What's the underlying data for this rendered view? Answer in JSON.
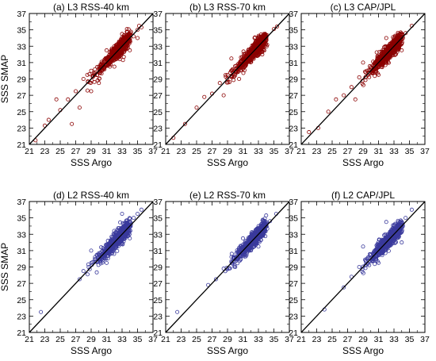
{
  "chart_data": [
    {
      "type": "scatter",
      "title": "(a) L3 RSS-40 km",
      "xlabel": "SSS Argo",
      "ylabel": "SSS SMAP",
      "xlim": [
        21,
        37
      ],
      "ylim": [
        21,
        37
      ],
      "color": "#8B0000",
      "reference_line": "y=x",
      "tick_labels": [
        "21",
        "23",
        "25",
        "27",
        "29",
        "31",
        "33",
        "35",
        "37"
      ],
      "points": [
        [
          21.8,
          21.5
        ],
        [
          23,
          23.3
        ],
        [
          23.5,
          24
        ],
        [
          25,
          25.2
        ],
        [
          26,
          26.5
        ],
        [
          27,
          27.5
        ],
        [
          28,
          29
        ],
        [
          28.5,
          29.5
        ],
        [
          29,
          30
        ],
        [
          29.5,
          29.8
        ],
        [
          30,
          30.5
        ],
        [
          30.5,
          31
        ],
        [
          31,
          31.5
        ],
        [
          31.5,
          31
        ],
        [
          32,
          32.5
        ],
        [
          32.5,
          33
        ],
        [
          33,
          33.5
        ],
        [
          33.5,
          33
        ],
        [
          34,
          34.5
        ],
        [
          34.5,
          34.2
        ],
        [
          35,
          35
        ],
        [
          35.2,
          35.5
        ],
        [
          35.5,
          35.3
        ],
        [
          29,
          27.5
        ],
        [
          30,
          28.5
        ],
        [
          31,
          32.5
        ],
        [
          32,
          30.5
        ],
        [
          33,
          34.5
        ],
        [
          26.5,
          23.5
        ],
        [
          24.5,
          26.5
        ],
        [
          27.5,
          25.5
        ],
        [
          34,
          32.5
        ],
        [
          35,
          34
        ]
      ]
    },
    {
      "type": "scatter",
      "title": "(b) L3 RSS-70 km",
      "xlabel": "SSS Argo",
      "ylabel": "",
      "xlim": [
        21,
        37
      ],
      "ylim": [
        21,
        37
      ],
      "color": "#8B0000",
      "reference_line": "y=x",
      "tick_labels": [
        "21",
        "23",
        "25",
        "27",
        "29",
        "31",
        "33",
        "35",
        "37"
      ],
      "points": [
        [
          22,
          21.8
        ],
        [
          23.5,
          23.5
        ],
        [
          25,
          25.5
        ],
        [
          26,
          26.8
        ],
        [
          27,
          27.2
        ],
        [
          28,
          28.5
        ],
        [
          29,
          29.5
        ],
        [
          30,
          30.2
        ],
        [
          31,
          31.3
        ],
        [
          32,
          32.2
        ],
        [
          33,
          33.1
        ],
        [
          34,
          34.2
        ],
        [
          35,
          35.1
        ],
        [
          35.4,
          35.4
        ],
        [
          28.5,
          27
        ],
        [
          29.5,
          31.5
        ],
        [
          30.5,
          29
        ],
        [
          32.5,
          34
        ],
        [
          33.5,
          32
        ]
      ]
    },
    {
      "type": "scatter",
      "title": "(c) L3 CAP/JPL",
      "xlabel": "SSS Argo",
      "ylabel": "",
      "xlim": [
        21,
        37
      ],
      "ylim": [
        21,
        37
      ],
      "color": "#8B0000",
      "reference_line": "y=x",
      "tick_labels": [
        "21",
        "23",
        "25",
        "27",
        "29",
        "31",
        "33",
        "35",
        "37"
      ],
      "points": [
        [
          22,
          22.5
        ],
        [
          23.2,
          23
        ],
        [
          24.5,
          25
        ],
        [
          25.5,
          26.5
        ],
        [
          26.5,
          27
        ],
        [
          27.5,
          28
        ],
        [
          28.5,
          29.2
        ],
        [
          29.5,
          30
        ],
        [
          30.5,
          31
        ],
        [
          31.5,
          31.8
        ],
        [
          32.5,
          32.7
        ],
        [
          33.5,
          33.6
        ],
        [
          34.5,
          34.6
        ],
        [
          35.3,
          35.5
        ],
        [
          28,
          26.5
        ],
        [
          29,
          31
        ],
        [
          31,
          29.5
        ],
        [
          32,
          34
        ],
        [
          34,
          32.5
        ]
      ]
    },
    {
      "type": "scatter",
      "title": "(d) L2 RSS-40 km",
      "xlabel": "SSS Argo",
      "ylabel": "SSS SMAP",
      "xlim": [
        21,
        37
      ],
      "ylim": [
        21,
        37
      ],
      "color": "#3A3A9C",
      "reference_line": "y=x",
      "tick_labels": [
        "21",
        "23",
        "25",
        "27",
        "29",
        "31",
        "33",
        "35",
        "37"
      ],
      "points": [
        [
          22.5,
          23.5
        ],
        [
          27.5,
          27.5
        ],
        [
          28,
          28.5
        ],
        [
          29,
          29.5
        ],
        [
          29.5,
          30.2
        ],
        [
          30,
          30.5
        ],
        [
          30.5,
          31
        ],
        [
          31,
          31.5
        ],
        [
          31.5,
          32
        ],
        [
          32,
          32.5
        ],
        [
          32.5,
          33
        ],
        [
          33,
          33.5
        ],
        [
          33.5,
          34
        ],
        [
          34,
          34.5
        ],
        [
          34.5,
          35
        ],
        [
          35,
          35.5
        ],
        [
          35.5,
          36
        ],
        [
          29,
          31
        ],
        [
          31,
          29.5
        ],
        [
          33,
          35.5
        ],
        [
          34,
          32.5
        ]
      ]
    },
    {
      "type": "scatter",
      "title": "(e) L2 RSS-70 km",
      "xlabel": "SSS Argo",
      "ylabel": "",
      "xlim": [
        21,
        37
      ],
      "ylim": [
        21,
        37
      ],
      "color": "#3A3A9C",
      "reference_line": "y=x",
      "tick_labels": [
        "21",
        "23",
        "25",
        "27",
        "29",
        "31",
        "33",
        "35",
        "37"
      ],
      "points": [
        [
          22.5,
          23.5
        ],
        [
          26.5,
          26.8
        ],
        [
          27.5,
          27.5
        ],
        [
          28.5,
          28.8
        ],
        [
          29.5,
          29.7
        ],
        [
          30.5,
          30.8
        ],
        [
          31.5,
          31.6
        ],
        [
          32.5,
          32.7
        ],
        [
          33.5,
          33.6
        ],
        [
          34.5,
          34.6
        ],
        [
          35.3,
          35.5
        ],
        [
          30,
          29
        ],
        [
          31,
          32.5
        ],
        [
          33,
          31.5
        ],
        [
          34,
          35.3
        ]
      ]
    },
    {
      "type": "scatter",
      "title": "(f) L2 CAP/JPL",
      "xlabel": "SSS Argo",
      "ylabel": "",
      "xlim": [
        21,
        37
      ],
      "ylim": [
        21,
        37
      ],
      "color": "#3A3A9C",
      "reference_line": "y=x",
      "tick_labels": [
        "21",
        "23",
        "25",
        "27",
        "29",
        "31",
        "33",
        "35",
        "37"
      ],
      "points": [
        [
          24,
          23.8
        ],
        [
          26.5,
          26.5
        ],
        [
          27.5,
          27.8
        ],
        [
          28.5,
          29
        ],
        [
          29.5,
          30
        ],
        [
          30.5,
          31
        ],
        [
          31.5,
          32
        ],
        [
          32.5,
          33
        ],
        [
          33.5,
          34
        ],
        [
          34.5,
          35
        ],
        [
          35.3,
          36
        ],
        [
          29,
          31.5
        ],
        [
          31,
          29.5
        ],
        [
          32,
          34.5
        ],
        [
          34,
          32
        ]
      ]
    }
  ]
}
